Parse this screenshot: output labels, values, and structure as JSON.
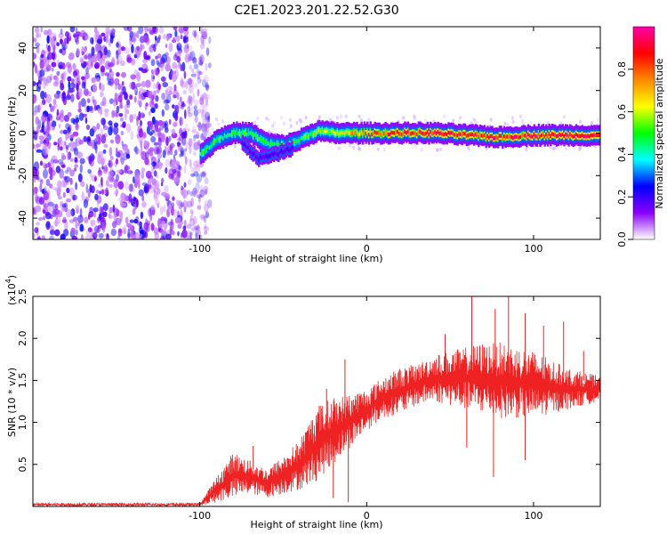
{
  "title": "C2E1.2023.201.22.52.G30",
  "colors": {
    "line": "#ee2222",
    "frame": "#000000"
  },
  "chart_data": [
    {
      "type": "heatmap",
      "xlabel": "Height of straight line (km)",
      "ylabel": "Frequency (Hz)",
      "xlim": [
        -200,
        140
      ],
      "ylim": [
        -50,
        50
      ],
      "xticks": [
        -100,
        0,
        100
      ],
      "yticks": [
        -40,
        -20,
        0,
        20,
        40
      ],
      "colorbar": {
        "label": "Normalized spectral amplitude",
        "range": [
          0,
          1
        ],
        "ticks": [
          "0.0",
          "0.2",
          "0.4",
          "0.6",
          "0.8"
        ],
        "colormap": [
          "#ffffff",
          "#8b00ff",
          "#0000ff",
          "#00ffff",
          "#00ff00",
          "#ffff00",
          "#ff8800",
          "#ff0000",
          "#ff00aa"
        ]
      },
      "noise_region_x": [
        -200,
        -100
      ],
      "ridge": [
        {
          "x": -100,
          "y": -10
        },
        {
          "x": -90,
          "y": -3
        },
        {
          "x": -80,
          "y": 0
        },
        {
          "x": -70,
          "y": 0
        },
        {
          "x": -60,
          "y": -5
        },
        {
          "x": -50,
          "y": -6
        },
        {
          "x": -40,
          "y": -3
        },
        {
          "x": -30,
          "y": 1
        },
        {
          "x": -20,
          "y": 0
        },
        {
          "x": 0,
          "y": 0
        },
        {
          "x": 20,
          "y": 0
        },
        {
          "x": 40,
          "y": 0
        },
        {
          "x": 60,
          "y": -1
        },
        {
          "x": 80,
          "y": -2
        },
        {
          "x": 100,
          "y": -1
        },
        {
          "x": 120,
          "y": -1
        },
        {
          "x": 140,
          "y": -1
        }
      ],
      "secondary_ridge": [
        {
          "x": -75,
          "y": -5
        },
        {
          "x": -65,
          "y": -12
        },
        {
          "x": -55,
          "y": -10
        },
        {
          "x": -45,
          "y": -7
        }
      ]
    },
    {
      "type": "line",
      "xlabel": "Height of straight line (km)",
      "ylabel": "SNR (10 * v/v)",
      "y_multiplier": "(x10",
      "y_multiplier_exp": "4",
      "y_multiplier_close": ")",
      "xlim": [
        -200,
        140
      ],
      "ylim": [
        0,
        2.5
      ],
      "xticks": [
        -100,
        0,
        100
      ],
      "yticks": [
        "0.5",
        "1.0",
        "1.5",
        "2.0",
        "2.5"
      ],
      "envelope": [
        {
          "x": -200,
          "lo": 0.0,
          "hi": 0.04
        },
        {
          "x": -100,
          "lo": 0.0,
          "hi": 0.04
        },
        {
          "x": -90,
          "lo": 0.05,
          "hi": 0.35
        },
        {
          "x": -80,
          "lo": 0.1,
          "hi": 0.65
        },
        {
          "x": -70,
          "lo": 0.15,
          "hi": 0.55
        },
        {
          "x": -60,
          "lo": 0.1,
          "hi": 0.45
        },
        {
          "x": -50,
          "lo": 0.15,
          "hi": 0.6
        },
        {
          "x": -40,
          "lo": 0.2,
          "hi": 0.8
        },
        {
          "x": -30,
          "lo": 0.3,
          "hi": 1.2
        },
        {
          "x": -20,
          "lo": 0.5,
          "hi": 1.3
        },
        {
          "x": -10,
          "lo": 0.7,
          "hi": 1.35
        },
        {
          "x": 0,
          "lo": 0.9,
          "hi": 1.4
        },
        {
          "x": 10,
          "lo": 1.05,
          "hi": 1.55
        },
        {
          "x": 20,
          "lo": 1.1,
          "hi": 1.65
        },
        {
          "x": 30,
          "lo": 1.2,
          "hi": 1.7
        },
        {
          "x": 40,
          "lo": 1.25,
          "hi": 1.8
        },
        {
          "x": 50,
          "lo": 1.2,
          "hi": 1.85
        },
        {
          "x": 60,
          "lo": 1.15,
          "hi": 1.9
        },
        {
          "x": 70,
          "lo": 1.1,
          "hi": 1.95
        },
        {
          "x": 80,
          "lo": 1.05,
          "hi": 1.95
        },
        {
          "x": 90,
          "lo": 1.05,
          "hi": 1.9
        },
        {
          "x": 100,
          "lo": 1.05,
          "hi": 1.85
        },
        {
          "x": 110,
          "lo": 1.1,
          "hi": 1.75
        },
        {
          "x": 120,
          "lo": 1.15,
          "hi": 1.65
        },
        {
          "x": 130,
          "lo": 1.2,
          "hi": 1.6
        },
        {
          "x": 140,
          "lo": 1.25,
          "hi": 1.55
        }
      ],
      "spikes": [
        {
          "x": -68,
          "y": 0.72
        },
        {
          "x": -30,
          "y": 1.0
        },
        {
          "x": -13,
          "y": 1.75
        },
        {
          "x": -24,
          "y": 1.4
        },
        {
          "x": 63,
          "y": 2.5
        },
        {
          "x": 85,
          "y": 2.5
        },
        {
          "x": 77,
          "y": 2.35
        },
        {
          "x": 95,
          "y": 2.3
        },
        {
          "x": 47,
          "y": 2.05
        },
        {
          "x": 118,
          "y": 2.2
        },
        {
          "x": 106,
          "y": 2.15
        },
        {
          "x": 130,
          "y": 1.85
        }
      ],
      "dips": [
        {
          "x": -11,
          "y": 0.05
        },
        {
          "x": -20,
          "y": 0.1
        },
        {
          "x": 76,
          "y": 0.35
        },
        {
          "x": 95,
          "y": 0.55
        },
        {
          "x": 60,
          "y": 0.7
        }
      ]
    }
  ]
}
